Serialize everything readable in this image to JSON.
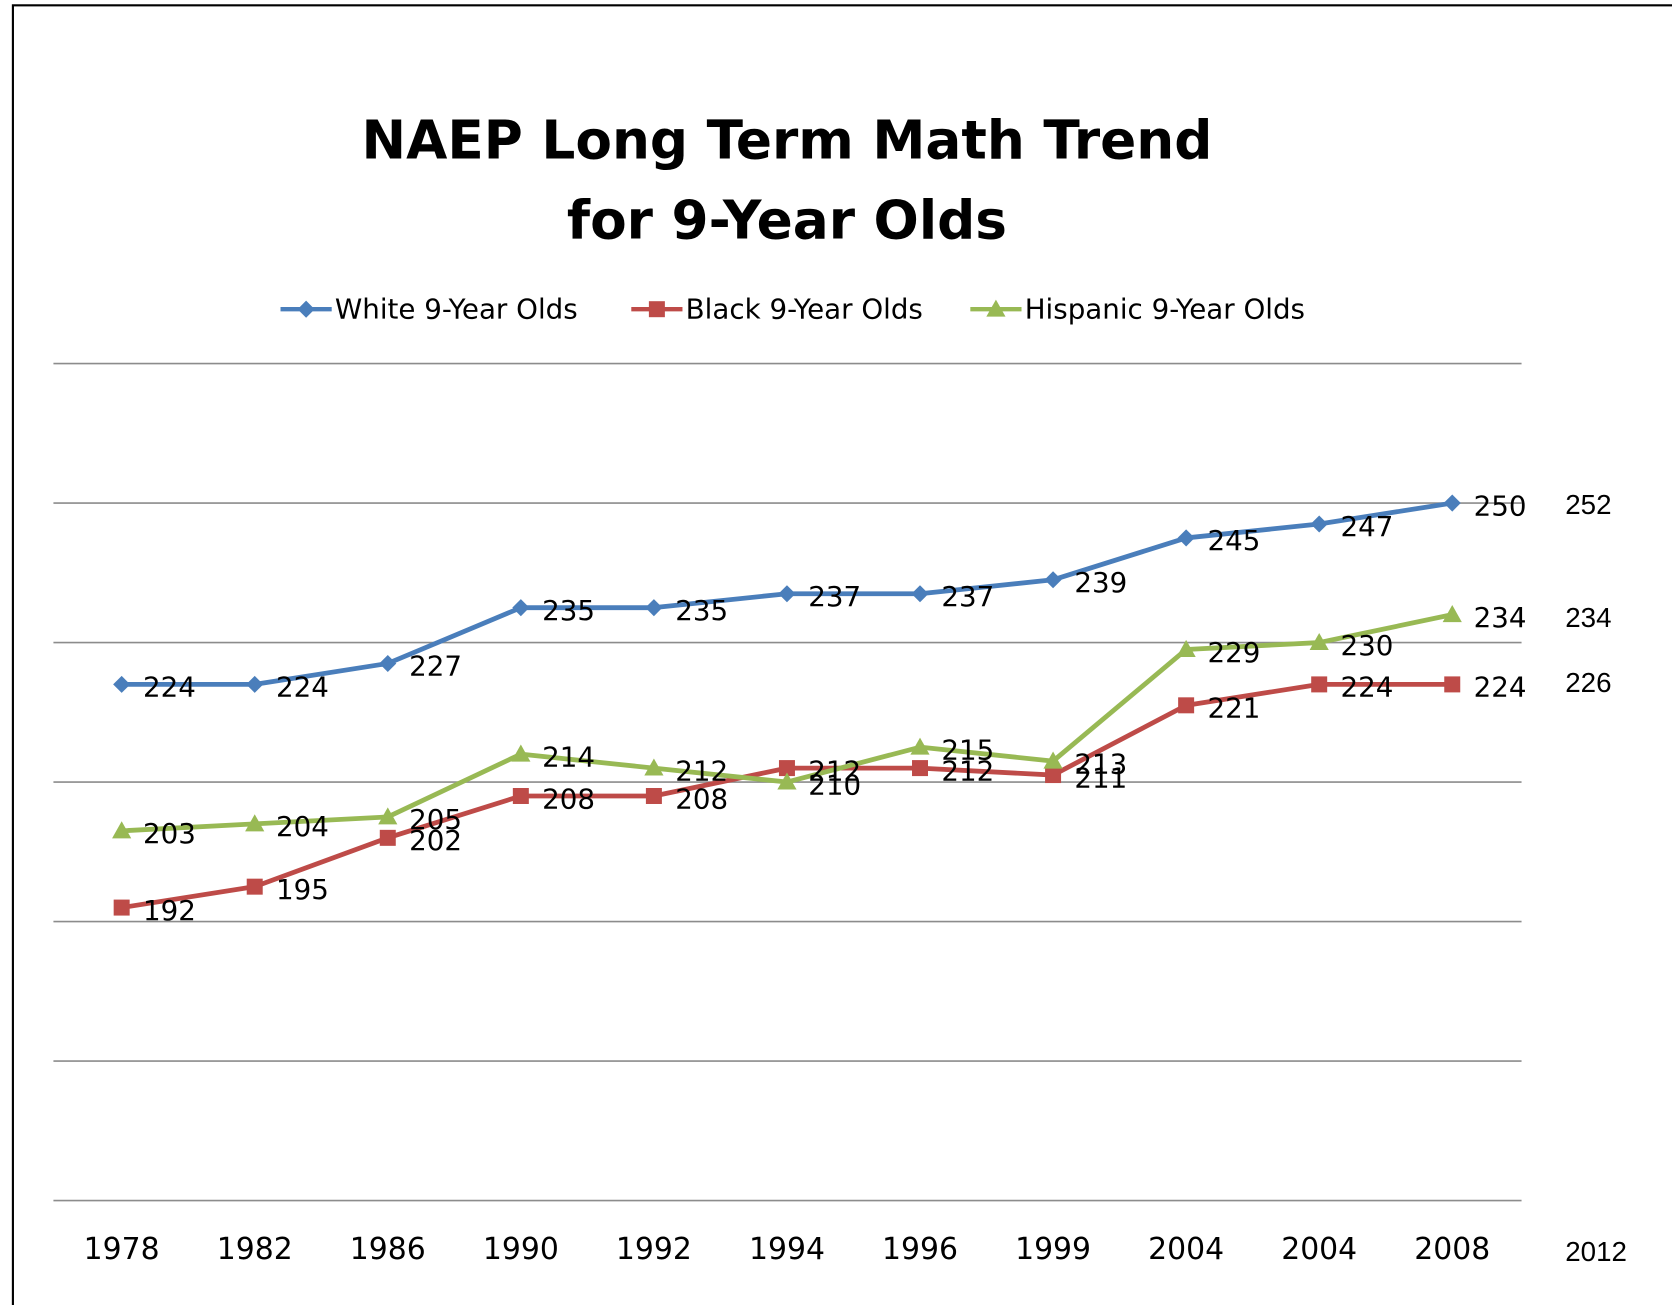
{
  "chart_data": {
    "type": "line",
    "title": [
      "NAEP Long Term Math Trend",
      "for 9-Year Olds"
    ],
    "categories": [
      "1978",
      "1982",
      "1986",
      "1990",
      "1992",
      "1994",
      "1996",
      "1999",
      "2004",
      "2004",
      "2008"
    ],
    "series": [
      {
        "name": "White 9-Year Olds",
        "color": "#4a7ebb",
        "marker": "diamond",
        "values": [
          224,
          224,
          227,
          235,
          235,
          237,
          237,
          239,
          245,
          247,
          250
        ]
      },
      {
        "name": "Black 9-Year Olds",
        "color": "#be4b48",
        "marker": "square",
        "values": [
          192,
          195,
          202,
          208,
          208,
          212,
          212,
          211,
          221,
          224,
          224
        ]
      },
      {
        "name": "Hispanic 9-Year Olds",
        "color": "#98b954",
        "marker": "triangle",
        "values": [
          203,
          204,
          205,
          214,
          212,
          210,
          215,
          213,
          229,
          230,
          234
        ]
      }
    ],
    "ylim": [
      150,
      270
    ],
    "yticks": [
      150,
      170,
      190,
      210,
      230,
      250,
      270
    ],
    "grid": true,
    "legend": "top",
    "side_notes": [
      "252",
      "234",
      "226"
    ],
    "extra_category": "2012"
  }
}
